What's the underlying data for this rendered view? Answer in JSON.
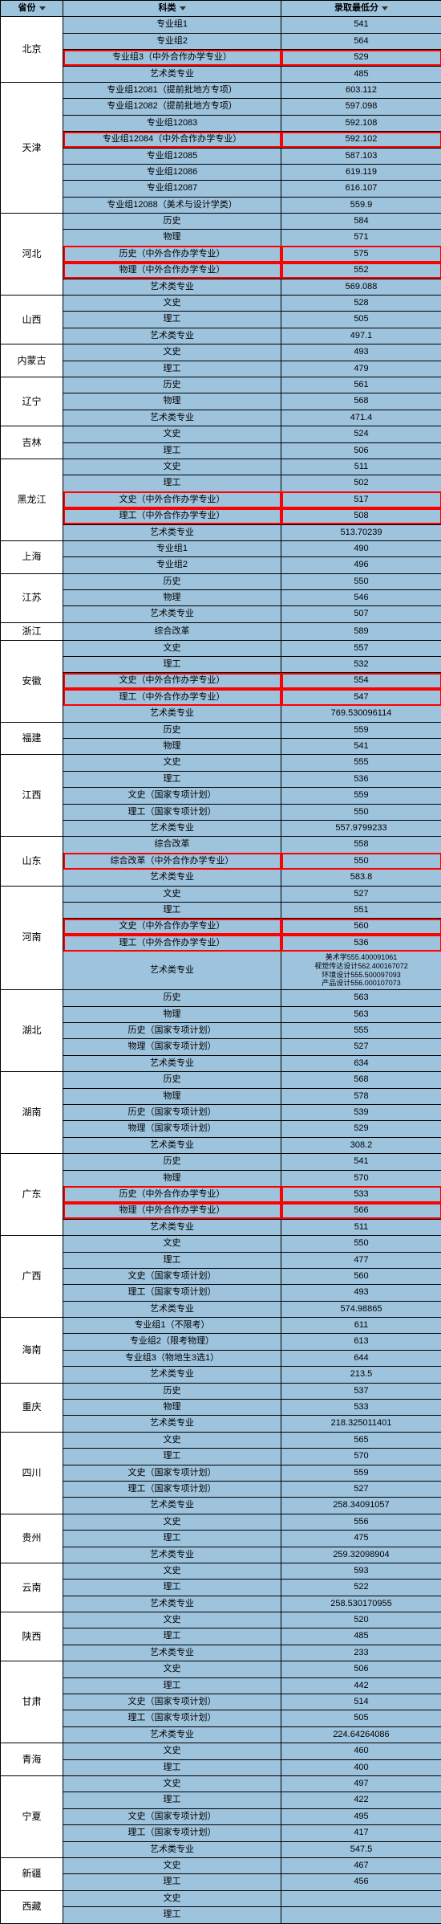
{
  "headers": {
    "province": "省份",
    "category": "科类",
    "score": "录取最低分"
  },
  "rows": [
    {
      "province": "北京",
      "rows": [
        {
          "cat": "专业组1",
          "score": "541"
        },
        {
          "cat": "专业组2",
          "score": "564"
        },
        {
          "cat": "专业组3（中外合作办学专业）",
          "score": "529",
          "hl": true
        },
        {
          "cat": "艺术类专业",
          "score": "485"
        }
      ]
    },
    {
      "province": "天津",
      "rows": [
        {
          "cat": "专业组12081（提前批地方专项）",
          "score": "603.112"
        },
        {
          "cat": "专业组12082（提前批地方专项）",
          "score": "597.098"
        },
        {
          "cat": "专业组12083",
          "score": "592.108"
        },
        {
          "cat": "专业组12084（中外合作办学专业）",
          "score": "592.102",
          "hl": true
        },
        {
          "cat": "专业组12085",
          "score": "587.103"
        },
        {
          "cat": "专业组12086",
          "score": "619.119"
        },
        {
          "cat": "专业组12087",
          "score": "616.107"
        },
        {
          "cat": "专业组12088（美术与设计学类）",
          "score": "559.9"
        }
      ]
    },
    {
      "province": "河北",
      "rows": [
        {
          "cat": "历史",
          "score": "584"
        },
        {
          "cat": "物理",
          "score": "571"
        },
        {
          "cat": "历史（中外合作办学专业）",
          "score": "575",
          "hl": true
        },
        {
          "cat": "物理（中外合作办学专业）",
          "score": "552",
          "hl": true
        },
        {
          "cat": "艺术类专业",
          "score": "569.088"
        }
      ]
    },
    {
      "province": "山西",
      "rows": [
        {
          "cat": "文史",
          "score": "528"
        },
        {
          "cat": "理工",
          "score": "505"
        },
        {
          "cat": "艺术类专业",
          "score": "497.1"
        }
      ]
    },
    {
      "province": "内蒙古",
      "rows": [
        {
          "cat": "文史",
          "score": "493"
        },
        {
          "cat": "理工",
          "score": "479"
        }
      ]
    },
    {
      "province": "辽宁",
      "rows": [
        {
          "cat": "历史",
          "score": "561"
        },
        {
          "cat": "物理",
          "score": "568"
        },
        {
          "cat": "艺术类专业",
          "score": "471.4"
        }
      ]
    },
    {
      "province": "吉林",
      "rows": [
        {
          "cat": "文史",
          "score": "524"
        },
        {
          "cat": "理工",
          "score": "506"
        }
      ]
    },
    {
      "province": "黑龙江",
      "rows": [
        {
          "cat": "文史",
          "score": "511"
        },
        {
          "cat": "理工",
          "score": "502"
        },
        {
          "cat": "文史（中外合作办学专业）",
          "score": "517",
          "hl": true
        },
        {
          "cat": "理工（中外合作办学专业）",
          "score": "508",
          "hl": true
        },
        {
          "cat": "艺术类专业",
          "score": "513.70239"
        }
      ]
    },
    {
      "province": "上海",
      "rows": [
        {
          "cat": "专业组1",
          "score": "490"
        },
        {
          "cat": "专业组2",
          "score": "496"
        }
      ]
    },
    {
      "province": "江苏",
      "rows": [
        {
          "cat": "历史",
          "score": "550"
        },
        {
          "cat": "物理",
          "score": "546"
        },
        {
          "cat": "艺术类专业",
          "score": "507"
        }
      ]
    },
    {
      "province": "浙江",
      "rows": [
        {
          "cat": "综合改革",
          "score": "589"
        }
      ]
    },
    {
      "province": "安徽",
      "rows": [
        {
          "cat": "文史",
          "score": "557"
        },
        {
          "cat": "理工",
          "score": "532"
        },
        {
          "cat": "文史（中外合作办学专业）",
          "score": "554",
          "hl": true
        },
        {
          "cat": "理工（中外合作办学专业）",
          "score": "547",
          "hl": true
        },
        {
          "cat": "艺术类专业",
          "score": "769.530096114"
        }
      ]
    },
    {
      "province": "福建",
      "rows": [
        {
          "cat": "历史",
          "score": "559"
        },
        {
          "cat": "物理",
          "score": "541"
        }
      ]
    },
    {
      "province": "江西",
      "rows": [
        {
          "cat": "文史",
          "score": "555"
        },
        {
          "cat": "理工",
          "score": "536"
        },
        {
          "cat": "文史（国家专项计划）",
          "score": "559"
        },
        {
          "cat": "理工（国家专项计划）",
          "score": "550"
        },
        {
          "cat": "艺术类专业",
          "score": "557.9799233"
        }
      ]
    },
    {
      "province": "山东",
      "rows": [
        {
          "cat": "综合改革",
          "score": "558"
        },
        {
          "cat": "综合改革（中外合作办学专业）",
          "score": "550",
          "hl": true
        },
        {
          "cat": "艺术类专业",
          "score": "583.8"
        }
      ]
    },
    {
      "province": "河南",
      "rows": [
        {
          "cat": "文史",
          "score": "527"
        },
        {
          "cat": "理工",
          "score": "551"
        },
        {
          "cat": "文史（中外合作办学专业）",
          "score": "560",
          "hl": true
        },
        {
          "cat": "理工（中外合作办学专业）",
          "score": "536",
          "hl": true
        },
        {
          "cat": "艺术类专业",
          "score": "",
          "multi": [
            "美术学555.400091061",
            "视觉传达设计562.400167072",
            "环境设计555.500097093",
            "产品设计556.000107073"
          ]
        }
      ]
    },
    {
      "province": "湖北",
      "rows": [
        {
          "cat": "历史",
          "score": "563"
        },
        {
          "cat": "物理",
          "score": "563"
        },
        {
          "cat": "历史（国家专项计划）",
          "score": "555"
        },
        {
          "cat": "物理（国家专项计划）",
          "score": "527"
        },
        {
          "cat": "艺术类专业",
          "score": "634"
        }
      ]
    },
    {
      "province": "湖南",
      "rows": [
        {
          "cat": "历史",
          "score": "568"
        },
        {
          "cat": "物理",
          "score": "578"
        },
        {
          "cat": "历史（国家专项计划）",
          "score": "539"
        },
        {
          "cat": "物理（国家专项计划）",
          "score": "529"
        },
        {
          "cat": "艺术类专业",
          "score": "308.2"
        }
      ]
    },
    {
      "province": "广东",
      "rows": [
        {
          "cat": "历史",
          "score": "541"
        },
        {
          "cat": "物理",
          "score": "570"
        },
        {
          "cat": "历史（中外合作办学专业）",
          "score": "533",
          "hl": true
        },
        {
          "cat": "物理（中外合作办学专业）",
          "score": "566",
          "hl": true
        },
        {
          "cat": "艺术类专业",
          "score": "511"
        }
      ]
    },
    {
      "province": "广西",
      "rows": [
        {
          "cat": "文史",
          "score": "550"
        },
        {
          "cat": "理工",
          "score": "477"
        },
        {
          "cat": "文史（国家专项计划）",
          "score": "560"
        },
        {
          "cat": "理工（国家专项计划）",
          "score": "493"
        },
        {
          "cat": "艺术类专业",
          "score": "574.98865"
        }
      ]
    },
    {
      "province": "海南",
      "rows": [
        {
          "cat": "专业组1（不限考）",
          "score": "611"
        },
        {
          "cat": "专业组2（限考物理）",
          "score": "613"
        },
        {
          "cat": "专业组3（物地生3选1）",
          "score": "644"
        },
        {
          "cat": "艺术类专业",
          "score": "213.5"
        }
      ]
    },
    {
      "province": "重庆",
      "rows": [
        {
          "cat": "历史",
          "score": "537"
        },
        {
          "cat": "物理",
          "score": "533"
        },
        {
          "cat": "艺术类专业",
          "score": "218.325011401"
        }
      ]
    },
    {
      "province": "四川",
      "rows": [
        {
          "cat": "文史",
          "score": "565"
        },
        {
          "cat": "理工",
          "score": "570"
        },
        {
          "cat": "文史（国家专项计划）",
          "score": "559"
        },
        {
          "cat": "理工（国家专项计划）",
          "score": "527"
        },
        {
          "cat": "艺术类专业",
          "score": "258.34091057"
        }
      ]
    },
    {
      "province": "贵州",
      "rows": [
        {
          "cat": "文史",
          "score": "556"
        },
        {
          "cat": "理工",
          "score": "475"
        },
        {
          "cat": "艺术类专业",
          "score": "259.32098904"
        }
      ]
    },
    {
      "province": "云南",
      "rows": [
        {
          "cat": "文史",
          "score": "593"
        },
        {
          "cat": "理工",
          "score": "522"
        },
        {
          "cat": "艺术类专业",
          "score": "258.530170955"
        }
      ]
    },
    {
      "province": "陕西",
      "rows": [
        {
          "cat": "文史",
          "score": "520"
        },
        {
          "cat": "理工",
          "score": "485"
        },
        {
          "cat": "艺术类专业",
          "score": "233"
        }
      ]
    },
    {
      "province": "甘肃",
      "rows": [
        {
          "cat": "文史",
          "score": "506"
        },
        {
          "cat": "理工",
          "score": "442"
        },
        {
          "cat": "文史（国家专项计划）",
          "score": "514"
        },
        {
          "cat": "理工（国家专项计划）",
          "score": "505"
        },
        {
          "cat": "艺术类专业",
          "score": "224.64264086"
        }
      ]
    },
    {
      "province": "青海",
      "rows": [
        {
          "cat": "文史",
          "score": "460"
        },
        {
          "cat": "理工",
          "score": "400"
        }
      ]
    },
    {
      "province": "宁夏",
      "rows": [
        {
          "cat": "文史",
          "score": "497"
        },
        {
          "cat": "理工",
          "score": "422"
        },
        {
          "cat": "文史（国家专项计划）",
          "score": "495"
        },
        {
          "cat": "理工（国家专项计划）",
          "score": "417"
        },
        {
          "cat": "艺术类专业",
          "score": "547.5"
        }
      ]
    },
    {
      "province": "新疆",
      "rows": [
        {
          "cat": "文史",
          "score": "467"
        },
        {
          "cat": "理工",
          "score": "456"
        }
      ]
    },
    {
      "province": "西藏",
      "rows": [
        {
          "cat": "文史",
          "score": ""
        },
        {
          "cat": "理工",
          "score": ""
        }
      ]
    }
  ]
}
